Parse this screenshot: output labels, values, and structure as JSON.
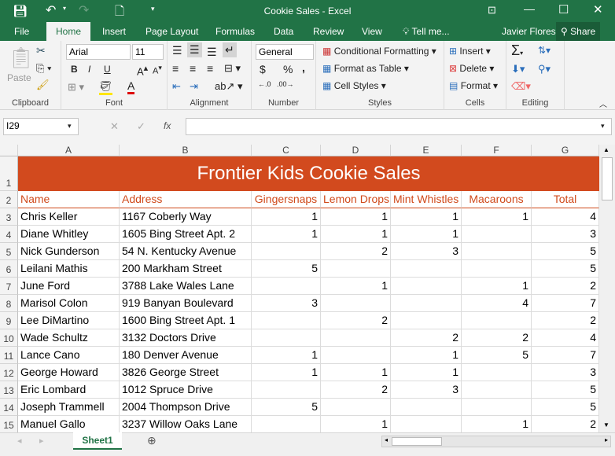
{
  "window": {
    "title": "Cookie Sales - Excel",
    "colors": {
      "brand": "#217346",
      "title_fill": "#d24a1e",
      "header_text": "#d04a1b"
    }
  },
  "qat": {
    "save": "save-icon",
    "undo": "undo-icon",
    "redo": "redo-icon",
    "new": "new-file-icon"
  },
  "tabs": [
    "File",
    "Home",
    "Insert",
    "Page Layout",
    "Formulas",
    "Data",
    "Review",
    "View"
  ],
  "tell_me": "Tell me...",
  "user": "Javier Flores",
  "share": "Share",
  "ribbon": {
    "clipboard": {
      "label": "Clipboard",
      "paste": "Paste"
    },
    "font": {
      "label": "Font",
      "name": "Arial",
      "size": "11",
      "bold": "B",
      "italic": "I",
      "underline": "U"
    },
    "alignment": {
      "label": "Alignment"
    },
    "number": {
      "label": "Number",
      "format": "General",
      "currency": "$",
      "percent": "%",
      "comma": ","
    },
    "styles": {
      "label": "Styles",
      "conditional": "Conditional Formatting",
      "table": "Format as Table",
      "cell": "Cell Styles"
    },
    "cells": {
      "label": "Cells",
      "insert": "Insert",
      "delete": "Delete",
      "format": "Format"
    },
    "editing": {
      "label": "Editing"
    }
  },
  "formula_bar": {
    "name_box": "I29",
    "value": "",
    "fx": "fx"
  },
  "columns": [
    "A",
    "B",
    "C",
    "D",
    "E",
    "F",
    "G"
  ],
  "sheet_title": "Frontier Kids Cookie Sales",
  "headers": [
    "Name",
    "Address",
    "Gingersnaps",
    "Lemon Drops",
    "Mint Whistles",
    "Macaroons",
    "Total"
  ],
  "rows": [
    [
      "Chris Keller",
      "1167 Coberly Way",
      "1",
      "1",
      "1",
      "1",
      "4"
    ],
    [
      "Diane Whitley",
      "1605 Bing Street Apt. 2",
      "1",
      "1",
      "1",
      "",
      "3"
    ],
    [
      "Nick Gunderson",
      "54 N. Kentucky Avenue",
      "",
      "2",
      "3",
      "",
      "5"
    ],
    [
      "Leilani Mathis",
      "200 Markham Street",
      "5",
      "",
      "",
      "",
      "5"
    ],
    [
      "June Ford",
      "3788 Lake Wales Lane",
      "",
      "1",
      "",
      "1",
      "2"
    ],
    [
      "Marisol Colon",
      "919 Banyan Boulevard",
      "3",
      "",
      "",
      "4",
      "7"
    ],
    [
      "Lee DiMartino",
      "1600 Bing Street Apt. 1",
      "",
      "2",
      "",
      "",
      "2"
    ],
    [
      "Wade Schultz",
      "3132 Doctors Drive",
      "",
      "",
      "2",
      "2",
      "4"
    ],
    [
      "Lance Cano",
      "180 Denver Avenue",
      "1",
      "",
      "1",
      "5",
      "7"
    ],
    [
      "George Howard",
      "3826 George Street",
      "1",
      "1",
      "1",
      "",
      "3"
    ],
    [
      "Eric Lombard",
      "1012 Spruce Drive",
      "",
      "2",
      "3",
      "",
      "5"
    ],
    [
      "Joseph Trammell",
      "2004 Thompson Drive",
      "5",
      "",
      "",
      "",
      "5"
    ],
    [
      "Manuel Gallo",
      "3237 Willow Oaks Lane",
      "",
      "1",
      "",
      "1",
      "2"
    ]
  ],
  "row_numbers": [
    "1",
    "2",
    "3",
    "4",
    "5",
    "6",
    "7",
    "8",
    "9",
    "10",
    "11",
    "12",
    "13",
    "14",
    "15"
  ],
  "sheets": [
    "Sheet1"
  ]
}
